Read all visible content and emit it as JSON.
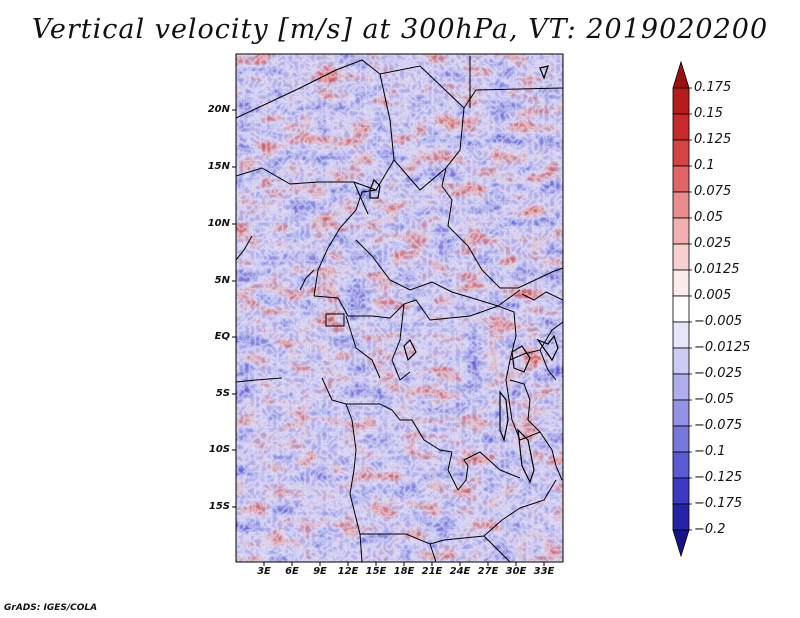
{
  "title": "Vertical velocity [m/s] at 300hPa, VT: 2019020200",
  "footer": "GrADS: IGES/COLA",
  "map": {
    "lat_labels": [
      "20N",
      "15N",
      "10N",
      "5N",
      "EQ",
      "5S",
      "10S",
      "15S"
    ],
    "lon_labels": [
      "3E",
      "6E",
      "9E",
      "12E",
      "15E",
      "18E",
      "21E",
      "24E",
      "27E",
      "30E",
      "33E"
    ]
  },
  "colorbar": {
    "levels": [
      "0.175",
      "0.15",
      "0.125",
      "0.1",
      "0.075",
      "0.05",
      "0.025",
      "0.0125",
      "0.005",
      "-0.005",
      "-0.0125",
      "-0.025",
      "-0.05",
      "-0.075",
      "-0.1",
      "-0.125",
      "-0.175",
      "-0.2"
    ],
    "colors": [
      "#9e1010",
      "#b71c1c",
      "#c82a2a",
      "#d64343",
      "#e06666",
      "#e98c8c",
      "#f1afaf",
      "#f7cfcf",
      "#fcebeb",
      "#ffffff",
      "#e6e6fb",
      "#cbcbf4",
      "#aeaeee",
      "#9393e6",
      "#7777dd",
      "#5a5ad2",
      "#3b3bc2",
      "#2424a8",
      "#15158a"
    ]
  },
  "colors": {
    "positive": "#c83232",
    "negative": "#4848c8",
    "neutral": "#ffffff"
  }
}
